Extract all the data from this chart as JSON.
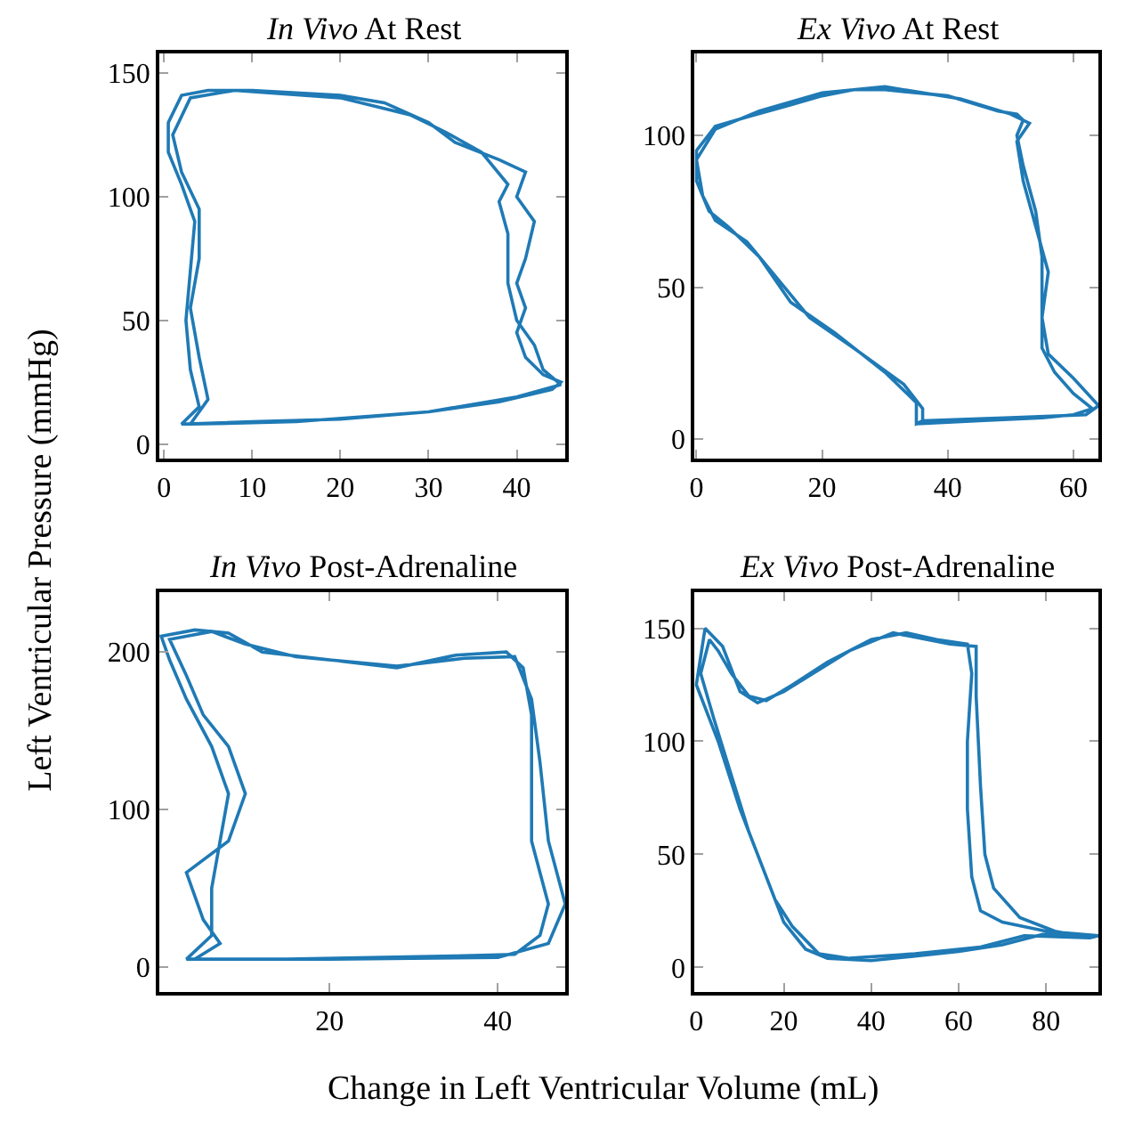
{
  "chart_data": [
    {
      "type": "line",
      "title": "In Vivo At Rest",
      "ylabel": "Left Ventricular Pressure (mmHg)",
      "xlim": [
        -0.5,
        45.5
      ],
      "ylim": [
        -6,
        158
      ],
      "xticks": [
        0,
        10,
        20,
        30,
        40
      ],
      "yticks": [
        0,
        50,
        100,
        150
      ],
      "series": [
        {
          "color": "#1f7ab5",
          "x": [
            2,
            10,
            20,
            30,
            38,
            44,
            45,
            43,
            41,
            40,
            41,
            40,
            41,
            42,
            40,
            41,
            38,
            33,
            30,
            25,
            20,
            10,
            5,
            2,
            0.5,
            0.5,
            2,
            3.5,
            3,
            2.5,
            3,
            4,
            2,
            3,
            15,
            30,
            40,
            45,
            43,
            42,
            40,
            39,
            39,
            38,
            39,
            36,
            32,
            28,
            20,
            8,
            3,
            1,
            2,
            4,
            4,
            3,
            4,
            5,
            3
          ],
          "values": [
            8,
            9,
            10,
            13,
            17,
            22,
            25,
            28,
            35,
            45,
            55,
            65,
            75,
            90,
            100,
            110,
            115,
            122,
            130,
            138,
            141,
            143,
            143,
            141,
            130,
            118,
            105,
            90,
            70,
            50,
            30,
            15,
            8,
            8,
            9,
            13,
            19,
            24,
            30,
            40,
            50,
            65,
            85,
            98,
            105,
            118,
            126,
            133,
            140,
            143,
            140,
            125,
            110,
            95,
            75,
            55,
            35,
            18,
            8
          ]
        }
      ]
    },
    {
      "type": "line",
      "title": "Ex Vivo At Rest",
      "xlim": [
        -0.3,
        64
      ],
      "ylim": [
        -6.5,
        127
      ],
      "xticks": [
        0,
        20,
        40,
        60
      ],
      "yticks": [
        0,
        50,
        100
      ],
      "series": [
        {
          "color": "#1f7ab5",
          "x": [
            35,
            45,
            55,
            60,
            63,
            60,
            57,
            55,
            55,
            55,
            54,
            52,
            51,
            52,
            51,
            48,
            40,
            30,
            25,
            20,
            15,
            8,
            3,
            0,
            0,
            2,
            5,
            10,
            15,
            22,
            30,
            35,
            35,
            36,
            50,
            62,
            64,
            60,
            56,
            55,
            56,
            54,
            52,
            51,
            53,
            50,
            42,
            30,
            20,
            10,
            3,
            0,
            1,
            3,
            8,
            12,
            18,
            25,
            33,
            36,
            36
          ],
          "values": [
            5,
            6,
            7,
            8,
            10,
            15,
            22,
            30,
            45,
            60,
            75,
            90,
            100,
            105,
            107,
            108,
            113,
            115,
            115,
            113,
            110,
            106,
            103,
            95,
            85,
            75,
            70,
            60,
            45,
            35,
            22,
            12,
            5,
            6,
            7,
            8,
            11,
            20,
            28,
            40,
            55,
            70,
            85,
            98,
            104,
            107,
            112,
            116,
            114,
            108,
            102,
            92,
            80,
            72,
            65,
            55,
            40,
            30,
            18,
            10,
            6
          ]
        }
      ]
    },
    {
      "type": "line",
      "title": "In Vivo Post-Adrenaline",
      "xlabel": "Change in Left Ventricular Volume (mL)",
      "xlim": [
        -0.2,
        48
      ],
      "ylim": [
        -16,
        238
      ],
      "xticks": [
        20,
        40
      ],
      "yticks": [
        0,
        100,
        200
      ],
      "series": [
        {
          "color": "#1f7ab5",
          "x": [
            3,
            15,
            25,
            35,
            42,
            45,
            46,
            44,
            44,
            44,
            43,
            41,
            35,
            28,
            20,
            12,
            8,
            4,
            0,
            1,
            3,
            6,
            8,
            7,
            6,
            6,
            3,
            4,
            20,
            40,
            46,
            48,
            46,
            45,
            44,
            42,
            36,
            28,
            16,
            10,
            6,
            1,
            3,
            5,
            8,
            10,
            8,
            3,
            5,
            7,
            4
          ],
          "values": [
            5,
            5,
            6,
            7,
            8,
            20,
            40,
            80,
            120,
            160,
            190,
            200,
            198,
            190,
            195,
            200,
            212,
            214,
            210,
            195,
            170,
            140,
            110,
            80,
            50,
            20,
            5,
            5,
            5,
            6,
            15,
            40,
            80,
            130,
            170,
            197,
            196,
            191,
            197,
            205,
            213,
            208,
            185,
            160,
            140,
            110,
            80,
            60,
            30,
            15,
            5
          ]
        }
      ]
    },
    {
      "type": "line",
      "title": "Ex Vivo Post-Adrenaline",
      "xlim": [
        -0.4,
        92
      ],
      "ylim": [
        -11,
        166
      ],
      "xticks": [
        0,
        20,
        40,
        60,
        80
      ],
      "yticks": [
        0,
        50,
        100,
        150
      ],
      "series": [
        {
          "color": "#1f7ab5",
          "x": [
            92,
            80,
            70,
            60,
            50,
            40,
            30,
            25,
            20,
            17,
            12,
            8,
            4,
            1,
            3,
            5,
            8,
            12,
            16,
            22,
            30,
            40,
            48,
            55,
            62,
            63,
            62,
            62,
            63,
            65,
            70,
            80,
            92,
            90,
            75,
            65,
            50,
            35,
            28,
            22,
            18,
            15,
            10,
            5,
            0,
            2,
            6,
            10,
            14,
            20,
            35,
            45,
            58,
            64,
            64,
            65,
            66,
            68,
            74,
            82,
            90
          ],
          "values": [
            14,
            15,
            10,
            7,
            5,
            3,
            4,
            8,
            20,
            35,
            60,
            85,
            110,
            130,
            145,
            140,
            130,
            120,
            118,
            125,
            135,
            145,
            148,
            145,
            143,
            130,
            100,
            70,
            40,
            25,
            20,
            16,
            14,
            13,
            14,
            9,
            6,
            4,
            6,
            18,
            30,
            45,
            70,
            100,
            125,
            150,
            142,
            122,
            117,
            122,
            140,
            148,
            143,
            142,
            120,
            80,
            50,
            35,
            22,
            16,
            13
          ]
        }
      ]
    }
  ]
}
